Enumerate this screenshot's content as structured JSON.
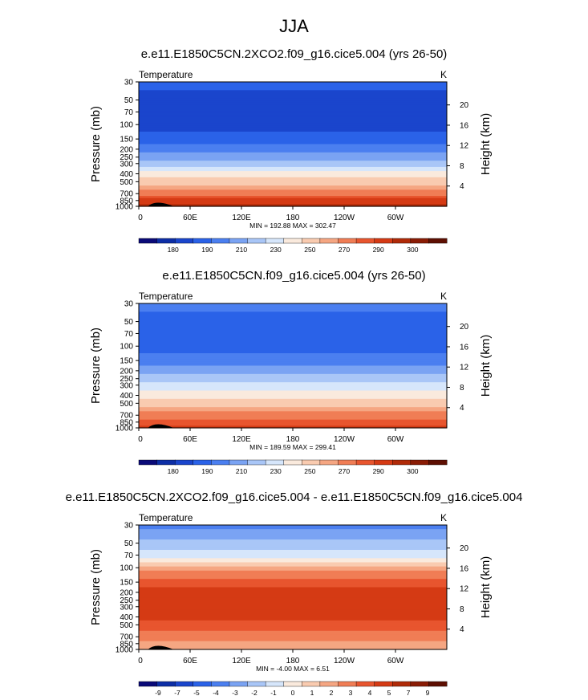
{
  "figure": {
    "title": "JJA"
  },
  "chart_data": [
    {
      "type": "heatmap",
      "title": "e.e11.E1850C5CN.2XCO2.f09_g16.cice5.004 (yrs 26-50)",
      "variable": "Temperature",
      "units": "K",
      "ylabel": "Pressure (mb)",
      "y2label": "Height (km)",
      "x_ticks": [
        "0",
        "60E",
        "120E",
        "180",
        "120W",
        "60W"
      ],
      "y_ticks": [
        "30",
        "50",
        "70",
        "100",
        "150",
        "200",
        "250",
        "300",
        "400",
        "500",
        "700",
        "850",
        "1000"
      ],
      "y2_ticks": [
        "4",
        "8",
        "12",
        "16",
        "20"
      ],
      "stats": "MIN = 192.88  MAX = 302.47",
      "colorbar_labels": [
        "180",
        "190",
        "210",
        "230",
        "250",
        "270",
        "290",
        "300"
      ],
      "colorbar_colors": [
        "#0a0a78",
        "#0d2ea6",
        "#1a45cc",
        "#2a62e8",
        "#4b7ff0",
        "#7aa3f3",
        "#a9c6f7",
        "#d6e6fb",
        "#faeadd",
        "#f9cbb0",
        "#f5a682",
        "#f07d55",
        "#e8552e",
        "#d53a14",
        "#b02a08",
        "#8a1c05",
        "#5e0f02"
      ],
      "profile": [
        {
          "p": 30,
          "level": 3
        },
        {
          "p": 50,
          "level": 2
        },
        {
          "p": 70,
          "level": 2
        },
        {
          "p": 100,
          "level": 2
        },
        {
          "p": 150,
          "level": 3
        },
        {
          "p": 200,
          "level": 4
        },
        {
          "p": 250,
          "level": 5
        },
        {
          "p": 300,
          "level": 6
        },
        {
          "p": 400,
          "level": 8
        },
        {
          "p": 500,
          "level": 9
        },
        {
          "p": 700,
          "level": 11
        },
        {
          "p": 850,
          "level": 13
        },
        {
          "p": 1000,
          "level": 14
        }
      ]
    },
    {
      "type": "heatmap",
      "title": "e.e11.E1850C5CN.f09_g16.cice5.004 (yrs 26-50)",
      "variable": "Temperature",
      "units": "K",
      "ylabel": "Pressure (mb)",
      "y2label": "Height (km)",
      "x_ticks": [
        "0",
        "60E",
        "120E",
        "180",
        "120W",
        "60W"
      ],
      "y_ticks": [
        "30",
        "50",
        "70",
        "100",
        "150",
        "200",
        "250",
        "300",
        "400",
        "500",
        "700",
        "850",
        "1000"
      ],
      "y2_ticks": [
        "4",
        "8",
        "12",
        "16",
        "20"
      ],
      "stats": "MIN = 189.59  MAX = 299.41",
      "colorbar_labels": [
        "180",
        "190",
        "210",
        "230",
        "250",
        "270",
        "290",
        "300"
      ],
      "colorbar_colors": [
        "#0a0a78",
        "#0d2ea6",
        "#1a45cc",
        "#2a62e8",
        "#4b7ff0",
        "#7aa3f3",
        "#a9c6f7",
        "#d6e6fb",
        "#faeadd",
        "#f9cbb0",
        "#f5a682",
        "#f07d55",
        "#e8552e",
        "#d53a14",
        "#b02a08",
        "#8a1c05",
        "#5e0f02"
      ],
      "profile": [
        {
          "p": 30,
          "level": 4
        },
        {
          "p": 50,
          "level": 3
        },
        {
          "p": 70,
          "level": 3
        },
        {
          "p": 100,
          "level": 3
        },
        {
          "p": 150,
          "level": 4
        },
        {
          "p": 200,
          "level": 5
        },
        {
          "p": 250,
          "level": 6
        },
        {
          "p": 300,
          "level": 7
        },
        {
          "p": 400,
          "level": 8
        },
        {
          "p": 500,
          "level": 9
        },
        {
          "p": 700,
          "level": 11
        },
        {
          "p": 850,
          "level": 12
        },
        {
          "p": 1000,
          "level": 13
        }
      ]
    },
    {
      "type": "heatmap",
      "title": "e.e11.E1850C5CN.2XCO2.f09_g16.cice5.004 - e.e11.E1850C5CN.f09_g16.cice5.004",
      "variable": "Temperature",
      "units": "K",
      "ylabel": "Pressure (mb)",
      "y2label": "Height (km)",
      "x_ticks": [
        "0",
        "60E",
        "120E",
        "180",
        "120W",
        "60W"
      ],
      "y_ticks": [
        "30",
        "50",
        "70",
        "100",
        "150",
        "200",
        "250",
        "300",
        "400",
        "500",
        "700",
        "850",
        "1000"
      ],
      "y2_ticks": [
        "4",
        "8",
        "12",
        "16",
        "20"
      ],
      "stats": "MIN = -4.00  MAX =  6.51",
      "colorbar_labels": [
        "-9",
        "-7",
        "-5",
        "-4",
        "-3",
        "-2",
        "-1",
        "0",
        "1",
        "2",
        "3",
        "4",
        "5",
        "7",
        "9"
      ],
      "colorbar_colors": [
        "#0a0a78",
        "#0d2ea6",
        "#1a45cc",
        "#2a62e8",
        "#4b7ff0",
        "#7aa3f3",
        "#a9c6f7",
        "#d6e6fb",
        "#faeadd",
        "#f9cbb0",
        "#f5a682",
        "#f07d55",
        "#e8552e",
        "#d53a14",
        "#b02a08",
        "#8a1c05",
        "#5e0f02"
      ],
      "profile": [
        {
          "p": 30,
          "level": 4
        },
        {
          "p": 50,
          "level": 6
        },
        {
          "p": 70,
          "level": 7
        },
        {
          "p": 100,
          "level": 10
        },
        {
          "p": 150,
          "level": 12
        },
        {
          "p": 200,
          "level": 13
        },
        {
          "p": 250,
          "level": 13
        },
        {
          "p": 300,
          "level": 13
        },
        {
          "p": 400,
          "level": 13
        },
        {
          "p": 500,
          "level": 12
        },
        {
          "p": 700,
          "level": 11
        },
        {
          "p": 850,
          "level": 10
        },
        {
          "p": 1000,
          "level": 10
        }
      ]
    }
  ]
}
